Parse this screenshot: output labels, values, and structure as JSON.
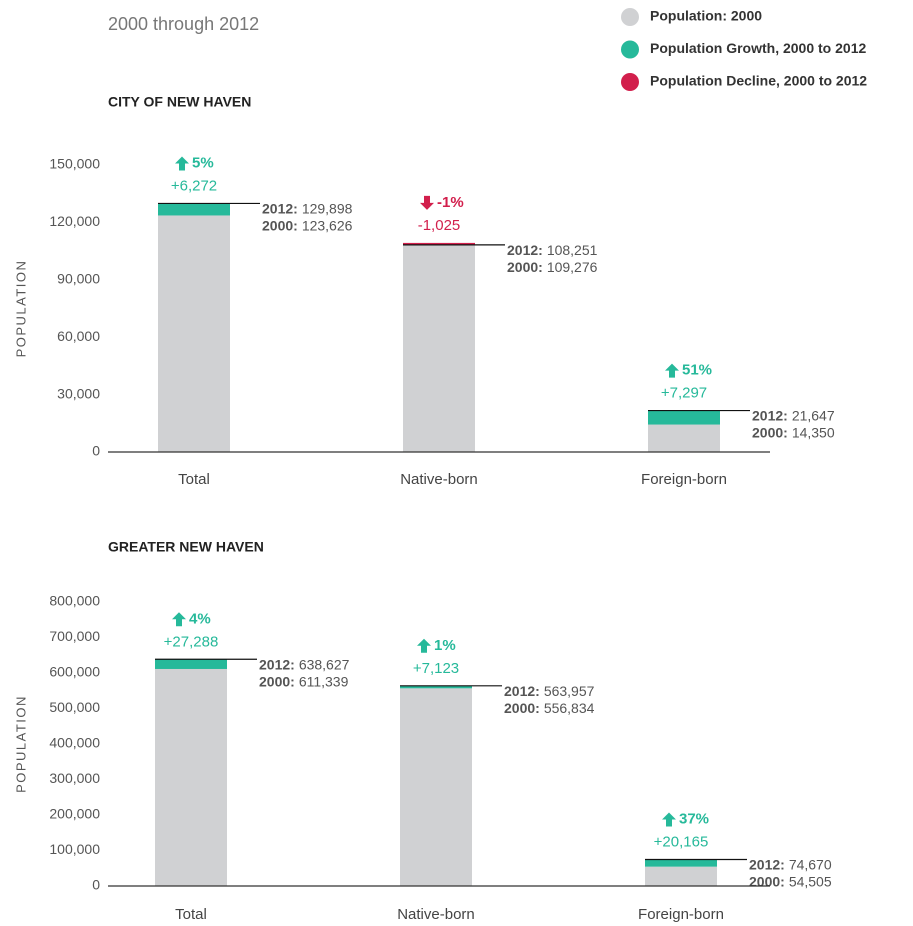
{
  "subtitle": "2000 through 2012",
  "legend": [
    {
      "name": "Population: 2000",
      "color": "#d0d1d3"
    },
    {
      "name": "Population Growth, 2000 to 2012",
      "color": "#26b99a"
    },
    {
      "name": "Population Decline, 2000 to 2012",
      "color": "#d21f4c"
    }
  ],
  "chart_data": [
    {
      "type": "bar",
      "stacked": true,
      "title": "CITY OF NEW HAVEN",
      "ylabel": "POPULATION",
      "categories": [
        "Total",
        "Native-born",
        "Foreign-born"
      ],
      "series": [
        {
          "name": "Population: 2000",
          "color": "#d0d1d3",
          "values": [
            123626,
            109276,
            14350
          ],
          "value_labels": [
            "123,626",
            "109,276",
            "14,350"
          ]
        },
        {
          "name": "Population Growth, 2000 to 2012",
          "color": "#26b99a",
          "values": [
            6272,
            null,
            7297
          ],
          "value_labels": [
            "+6,272",
            null,
            "+7,297"
          ]
        },
        {
          "name": "Population Decline, 2000 to 2012",
          "color": "#d21f4c",
          "values": [
            null,
            -1025,
            null
          ],
          "value_labels": [
            null,
            "-1,025",
            null
          ]
        }
      ],
      "pct_change": [
        5,
        -1,
        51
      ],
      "pct_labels": [
        "5%",
        "-1%",
        "51%"
      ],
      "label_2012": "2012:",
      "label_2000": "2000:",
      "values_2012": [
        129898,
        108251,
        21647
      ],
      "labels_2012": [
        "129,898",
        "108,251",
        "21,647"
      ],
      "ylim": [
        0,
        150000
      ],
      "yticks": [
        0,
        {
          "value": 30000,
          "label": "30,000"
        },
        {
          "value": 60000,
          "label": "60,000"
        },
        {
          "value": 90000,
          "label": "90,000"
        },
        {
          "value": 120000,
          "label": "120,000"
        },
        {
          "value": 150000,
          "label": "150,000"
        }
      ]
    },
    {
      "type": "bar",
      "stacked": true,
      "title": "GREATER NEW HAVEN",
      "ylabel": "POPULATION",
      "categories": [
        "Total",
        "Native-born",
        "Foreign-born"
      ],
      "series": [
        {
          "name": "Population: 2000",
          "color": "#d0d1d3",
          "values": [
            611339,
            556834,
            54505
          ],
          "value_labels": [
            "611,339",
            "556,834",
            "54,505"
          ]
        },
        {
          "name": "Population Growth, 2000 to 2012",
          "color": "#26b99a",
          "values": [
            27288,
            7123,
            20165
          ],
          "value_labels": [
            "+27,288",
            "+7,123",
            "+20,165"
          ]
        },
        {
          "name": "Population Decline, 2000 to 2012",
          "color": "#d21f4c",
          "values": [
            null,
            null,
            null
          ],
          "value_labels": [
            null,
            null,
            null
          ]
        }
      ],
      "pct_change": [
        4,
        1,
        37
      ],
      "pct_labels": [
        "4%",
        "1%",
        "37%"
      ],
      "label_2012": "2012:",
      "label_2000": "2000:",
      "values_2012": [
        638627,
        563957,
        74670
      ],
      "labels_2012": [
        "638,627",
        "563,957",
        "74,670"
      ],
      "ylim": [
        0,
        800000
      ],
      "yticks": [
        0,
        {
          "value": 100000,
          "label": "100,000"
        },
        {
          "value": 200000,
          "label": "200,000"
        },
        {
          "value": 300000,
          "label": "300,000"
        },
        {
          "value": 400000,
          "label": "400,000"
        },
        {
          "value": 500000,
          "label": "500,000"
        },
        {
          "value": 600000,
          "label": "600,000"
        },
        {
          "value": 700000,
          "label": "700,000"
        },
        {
          "value": 800000,
          "label": "800,000"
        }
      ]
    }
  ]
}
